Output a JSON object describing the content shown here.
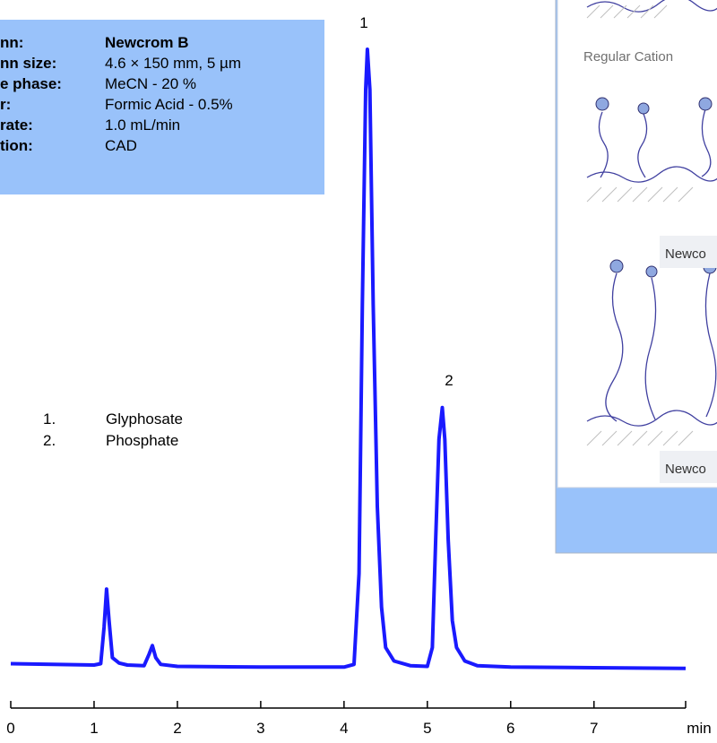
{
  "conditions_box": {
    "rows": [
      {
        "label": "nn:",
        "value": "Newcrom B"
      },
      {
        "label": "nn size:",
        "value": "4.6 × 150 mm, 5 µm"
      },
      {
        "label": "e phase:",
        "value": "MeCN - 20 %"
      },
      {
        "label": "r:",
        "value": "Formic Acid  - 0.5%"
      },
      {
        "label": "rate:",
        "value": "1.0 mL/min"
      },
      {
        "label": "tion:",
        "value": "CAD"
      }
    ]
  },
  "inset": {
    "caption": "Regular Cation",
    "labels": [
      "Newco",
      "Newco"
    ]
  },
  "chart_data": {
    "type": "line",
    "peak_labels": [
      "1",
      "2"
    ],
    "compounds": [
      {
        "number": "1.",
        "name": "Glyphosate"
      },
      {
        "number": "2.",
        "name": "Phosphate"
      }
    ],
    "x_unit": "min",
    "x": [
      0,
      0.5,
      1.0,
      1.08,
      1.12,
      1.15,
      1.18,
      1.22,
      1.3,
      1.4,
      1.6,
      1.66,
      1.7,
      1.74,
      1.8,
      2.0,
      3.0,
      4.0,
      4.12,
      4.18,
      4.22,
      4.26,
      4.28,
      4.31,
      4.35,
      4.4,
      4.45,
      4.5,
      4.6,
      4.8,
      5.0,
      5.06,
      5.1,
      5.14,
      5.18,
      5.21,
      5.25,
      5.3,
      5.35,
      5.45,
      5.6,
      6.0,
      7.0,
      8.1
    ],
    "series": [
      {
        "color": "#1a1aff",
        "values": [
          6.6,
          6.5,
          6.4,
          6.6,
          12,
          17.7,
          13,
          7.5,
          6.7,
          6.4,
          6.3,
          8,
          9.3,
          7.5,
          6.5,
          6.2,
          6.1,
          6.1,
          6.5,
          20,
          60,
          92,
          98,
          92,
          60,
          30,
          15,
          9,
          7,
          6.3,
          6.2,
          9,
          25,
          40,
          44.7,
          40,
          25,
          13,
          9,
          7,
          6.3,
          6.1,
          6.0,
          5.9
        ]
      }
    ],
    "xlim": [
      0,
      8.1
    ],
    "xticks": [
      0,
      1,
      2,
      3,
      4,
      5,
      6,
      7
    ],
    "ylim": [
      0,
      100
    ]
  }
}
